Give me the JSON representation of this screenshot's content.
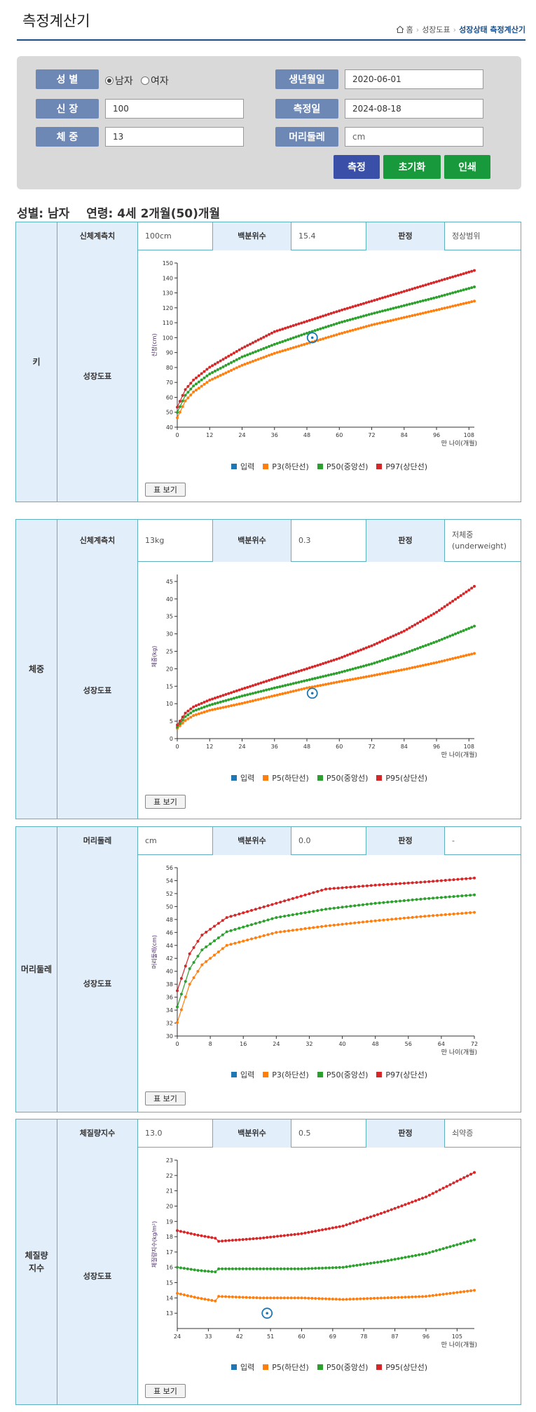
{
  "header": {
    "title": "측정계산기",
    "breadcrumb": [
      "홈",
      "성장도표",
      "성장상태 측정계산기"
    ]
  },
  "form": {
    "sex_label": "성 별",
    "male": "남자",
    "female": "여자",
    "height_label": "신 장",
    "height_value": "100",
    "weight_label": "체 중",
    "weight_value": "13",
    "birth_label": "생년월일",
    "birth_value": "2020-06-01",
    "date_label": "측정일",
    "date_value": "2024-08-18",
    "head_label": "머리둘레",
    "head_placeholder": "cm",
    "measure_btn": "측정",
    "reset_btn": "초기화",
    "print_btn": "인쇄",
    "colors": {
      "label": "#6e88b6",
      "measure": "#3a4fa8",
      "green": "#189a3c"
    }
  },
  "summary": {
    "sex": "성별: 남자",
    "age": "연령: 4세 2개월(50)개월"
  },
  "common": {
    "value_label_body": "신체계측치",
    "percentile_label": "백분위수",
    "judgement_label": "판정",
    "chart_label": "성장도표",
    "table_button": "표 보기",
    "xlabel": "만 나이(개월)"
  },
  "sections": [
    {
      "category": "키",
      "value_label": "신체계측치",
      "value": "100cm",
      "percentile": "15.4",
      "judgement": "정상범위",
      "legend": [
        "입력",
        "P3(하단선)",
        "P50(중앙선)",
        "P97(상단선)"
      ]
    },
    {
      "category": "체중",
      "value_label": "신체계측치",
      "value": "13kg",
      "percentile": "0.3",
      "judgement": "저체중\n(underweight)",
      "legend": [
        "입력",
        "P5(하단선)",
        "P50(중앙선)",
        "P95(상단선)"
      ]
    },
    {
      "category": "머리둘레",
      "value_label": "머리둘레",
      "value": "cm",
      "percentile": "0.0",
      "judgement": "-",
      "legend": [
        "입력",
        "P3(하단선)",
        "P50(중앙선)",
        "P97(상단선)"
      ]
    },
    {
      "category": "체질량\n지수",
      "value_label": "체질량지수",
      "value": "13.0",
      "percentile": "0.5",
      "judgement": "쇠약증",
      "legend": [
        "입력",
        "P5(하단선)",
        "P50(중앙선)",
        "P95(상단선)"
      ]
    }
  ],
  "colors": {
    "input": "#1f77b4",
    "low": "#ff7f0e",
    "mid": "#2ca02c",
    "high": "#d62728",
    "border": "#5fb0c0",
    "header_bg": "#e3eefb"
  },
  "chart_data": [
    {
      "type": "line",
      "title": "키",
      "ylabel": "신장(cm)",
      "xlabel": "만 나이(개월)",
      "xlim": [
        0,
        110
      ],
      "ylim": [
        40,
        150
      ],
      "xticks": [
        0,
        12,
        24,
        36,
        48,
        60,
        72,
        84,
        96,
        108
      ],
      "yticks": [
        40,
        50,
        60,
        70,
        80,
        90,
        100,
        110,
        120,
        130,
        140,
        150
      ],
      "series": [
        {
          "name": "P3(하단선)",
          "x": [
            0,
            3,
            6,
            12,
            24,
            36,
            48,
            60,
            72,
            84,
            96,
            110
          ],
          "values": [
            46.3,
            57.6,
            63.6,
            71.3,
            81.5,
            89.5,
            96,
            102.5,
            108.5,
            113.5,
            118.5,
            124.5
          ]
        },
        {
          "name": "P50(중앙선)",
          "x": [
            0,
            3,
            6,
            12,
            24,
            36,
            48,
            60,
            72,
            84,
            96,
            110
          ],
          "values": [
            49.9,
            61.4,
            67.6,
            75.7,
            87.1,
            95.5,
            103,
            110,
            116,
            121.5,
            127,
            134
          ]
        },
        {
          "name": "P97(상단선)",
          "x": [
            0,
            3,
            6,
            12,
            24,
            36,
            48,
            60,
            72,
            84,
            96,
            110
          ],
          "values": [
            53.4,
            65.2,
            71.6,
            80.2,
            92.9,
            104,
            111,
            118,
            124.5,
            131,
            137.5,
            145
          ]
        }
      ],
      "input": {
        "x": 50,
        "y": 100
      }
    },
    {
      "type": "line",
      "title": "체중",
      "ylabel": "체중(kg)",
      "xlabel": "만 나이(개월)",
      "xlim": [
        0,
        110
      ],
      "ylim": [
        0,
        47
      ],
      "xticks": [
        0,
        12,
        24,
        36,
        48,
        60,
        72,
        84,
        96,
        108
      ],
      "yticks": [
        0,
        5,
        10,
        15,
        20,
        25,
        30,
        35,
        40,
        45
      ],
      "series": [
        {
          "name": "P5(하단선)",
          "x": [
            0,
            3,
            6,
            12,
            24,
            36,
            48,
            60,
            72,
            84,
            96,
            110
          ],
          "values": [
            2.9,
            5.2,
            6.6,
            8.1,
            10.1,
            12.3,
            14.5,
            16.3,
            18,
            19.8,
            21.8,
            24.4
          ]
        },
        {
          "name": "P50(중앙선)",
          "x": [
            0,
            3,
            6,
            12,
            24,
            36,
            48,
            60,
            72,
            84,
            96,
            110
          ],
          "values": [
            3.3,
            6.3,
            7.9,
            9.6,
            12.2,
            14.5,
            16.7,
            18.9,
            21.4,
            24.4,
            27.8,
            32.2
          ]
        },
        {
          "name": "P95(상단선)",
          "x": [
            0,
            3,
            6,
            12,
            24,
            36,
            48,
            60,
            72,
            84,
            96,
            110
          ],
          "values": [
            3.9,
            7.3,
            9.1,
            11.1,
            14.2,
            17.2,
            20,
            23,
            26.6,
            30.8,
            36.2,
            43.6
          ]
        }
      ],
      "input": {
        "x": 50,
        "y": 13
      }
    },
    {
      "type": "line",
      "title": "머리둘레",
      "ylabel": "머리둘레(cm)",
      "xlabel": "만 나이(개월)",
      "xlim": [
        0,
        72
      ],
      "ylim": [
        30,
        56
      ],
      "xticks": [
        0,
        8,
        16,
        24,
        32,
        40,
        48,
        56,
        64,
        72
      ],
      "yticks": [
        30,
        32,
        34,
        36,
        38,
        40,
        42,
        44,
        46,
        48,
        50,
        52,
        54,
        56
      ],
      "series": [
        {
          "name": "P3(하단선)",
          "x": [
            0,
            3,
            6,
            12,
            24,
            36,
            48,
            60,
            72
          ],
          "values": [
            32.1,
            38,
            41,
            44,
            46,
            47,
            47.8,
            48.5,
            49.1
          ]
        },
        {
          "name": "P50(중앙선)",
          "x": [
            0,
            3,
            6,
            12,
            24,
            36,
            48,
            60,
            72
          ],
          "values": [
            34.5,
            40.4,
            43.3,
            46.1,
            48.3,
            49.6,
            50.5,
            51.2,
            51.8
          ]
        },
        {
          "name": "P97(상단선)",
          "x": [
            0,
            3,
            6,
            12,
            24,
            36,
            48,
            60,
            72
          ],
          "values": [
            37,
            42.7,
            45.6,
            48.3,
            50.5,
            52.7,
            53.3,
            53.8,
            54.4
          ]
        }
      ]
    },
    {
      "type": "line",
      "title": "체질량지수",
      "ylabel": "체질량지수(kg/m²)",
      "xlabel": "만 나이(개월)",
      "xlim": [
        24,
        110
      ],
      "ylim": [
        12,
        23
      ],
      "xticks": [
        24,
        33,
        42,
        51,
        60,
        69,
        78,
        87,
        96,
        105
      ],
      "yticks": [
        13,
        14,
        15,
        16,
        17,
        18,
        19,
        20,
        21,
        22,
        23
      ],
      "series": [
        {
          "name": "P5(하단선)",
          "x": [
            24,
            30,
            35,
            36,
            48,
            60,
            72,
            84,
            96,
            110
          ],
          "values": [
            14.3,
            14.0,
            13.8,
            14.1,
            14.0,
            14.0,
            13.9,
            14.0,
            14.1,
            14.5
          ]
        },
        {
          "name": "P50(중앙선)",
          "x": [
            24,
            30,
            35,
            36,
            48,
            60,
            72,
            84,
            96,
            110
          ],
          "values": [
            16.0,
            15.8,
            15.7,
            15.9,
            15.9,
            15.9,
            16.0,
            16.4,
            16.9,
            17.8
          ]
        },
        {
          "name": "P95(상단선)",
          "x": [
            24,
            30,
            35,
            36,
            48,
            60,
            72,
            84,
            96,
            110
          ],
          "values": [
            18.4,
            18.1,
            17.9,
            17.7,
            17.9,
            18.2,
            18.7,
            19.6,
            20.6,
            22.2
          ]
        }
      ],
      "input": {
        "x": 50,
        "y": 13.0
      }
    }
  ]
}
